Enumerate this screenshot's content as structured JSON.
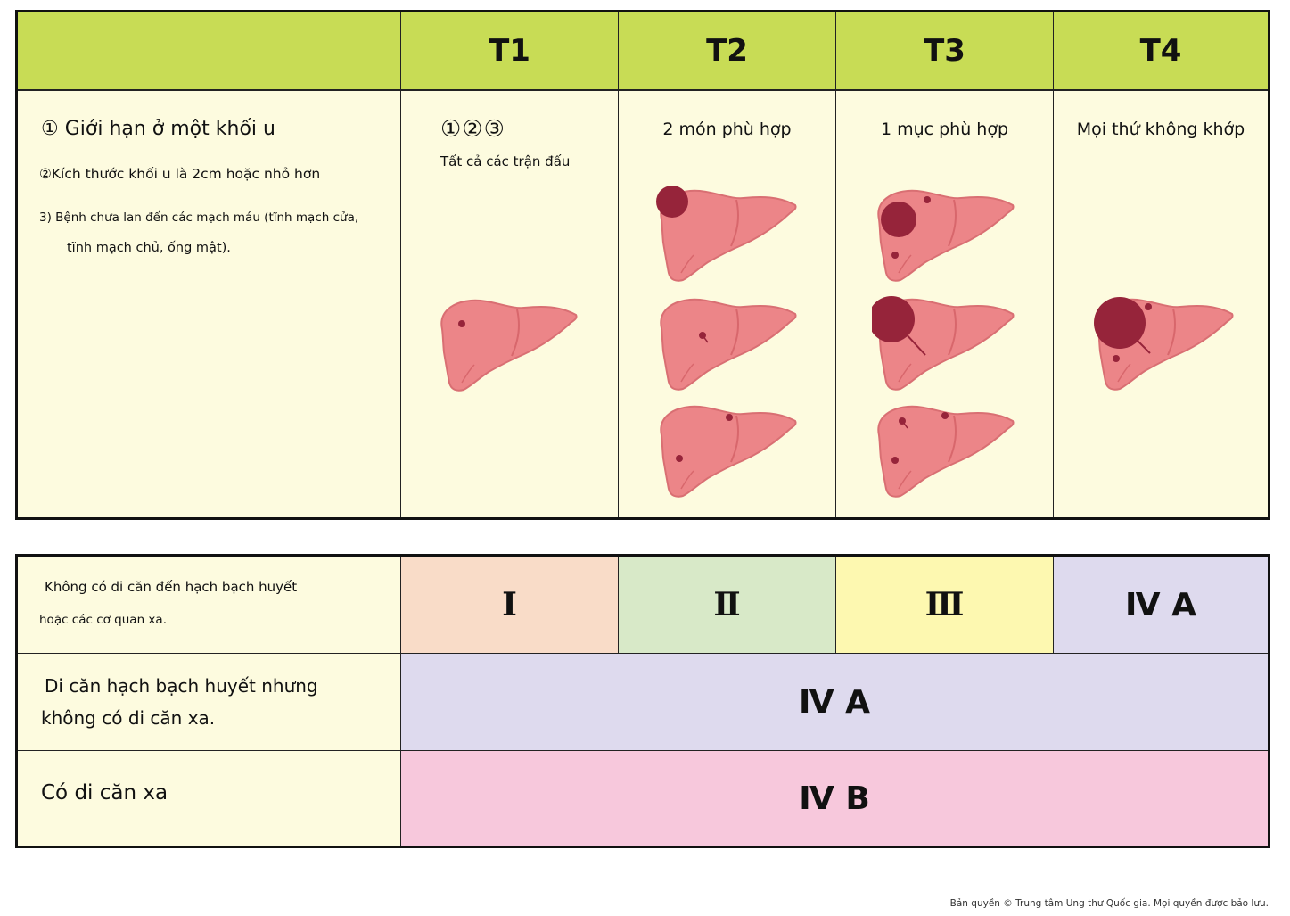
{
  "header": {
    "cols": [
      "T1",
      "T2",
      "T3",
      "T4"
    ]
  },
  "criteria": {
    "c1": "① Giới hạn ở một khối u",
    "c2": "②Kích thước khối u là 2cm hoặc nhỏ hơn",
    "c3a": "3) Bệnh chưa lan đến các mạch máu (tĩnh mạch cửa,",
    "c3b": "tĩnh mạch chủ, ống mật)."
  },
  "columns": {
    "t1_numbers": "①②③",
    "t1_label": "Tất cả các trận đấu",
    "t2_label": "2 món phù hợp",
    "t3_label": "1 mục phù hợp",
    "t4_label": "Mọi thứ không khớp"
  },
  "stages": {
    "row1_label_a": "Không có di căn đến hạch bạch huyết",
    "row1_label_b": "hoặc các cơ quan xa.",
    "s1": "I",
    "s2": "Ⅱ",
    "s3": "Ⅲ",
    "s4": "Ⅳ A",
    "row2_label_a": "Di căn hạch bạch huyết nhưng",
    "row2_label_b": "không có di căn xa.",
    "row2_stage": "Ⅳ A",
    "row3_label": "Có di căn xa",
    "row3_stage": "Ⅳ B"
  },
  "footer": {
    "copyright": "Bản quyền © Trung tâm Ung thư Quốc gia. Mọi quyền được bảo lưu."
  },
  "colors": {
    "header_green": "#c8dc55",
    "cream": "#fdfbdf",
    "liver": "#ec8588",
    "tumor": "#96243a",
    "stage_I": "#f9dcc8",
    "stage_II": "#d8e9c8",
    "stage_III": "#fdf8b0",
    "stage_IVA": "#dedaee",
    "stage_IVB": "#f7c8dc"
  }
}
